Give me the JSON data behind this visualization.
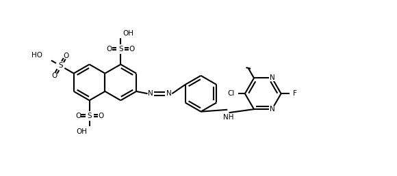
{
  "figsize": [
    5.8,
    2.58
  ],
  "dpi": 100,
  "bg": "#ffffff",
  "lc": "#000000",
  "lw": 1.5,
  "fs": 7.5,
  "r": 0.48,
  "xlim": [
    -0.3,
    10.2
  ],
  "ylim": [
    0.1,
    4.6
  ]
}
